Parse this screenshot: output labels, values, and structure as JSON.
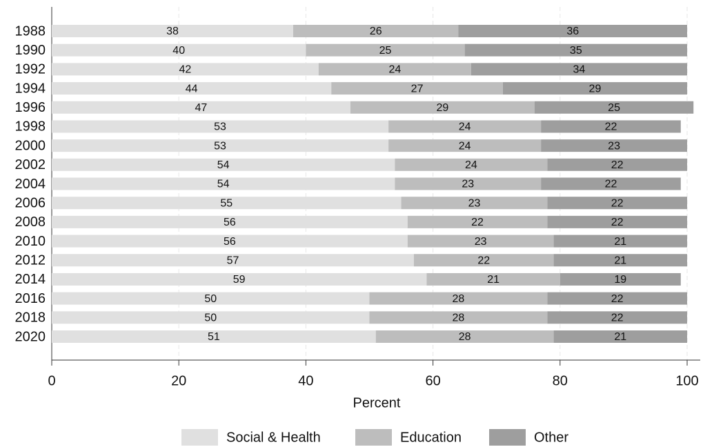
{
  "chart_data": {
    "type": "bar",
    "orientation": "horizontal",
    "stacked": true,
    "categories": [
      "1988",
      "1990",
      "1992",
      "1994",
      "1996",
      "1998",
      "2000",
      "2002",
      "2004",
      "2006",
      "2008",
      "2010",
      "2012",
      "2014",
      "2016",
      "2018",
      "2020"
    ],
    "series": [
      {
        "name": "Social & Health",
        "color": "#e0e0e0",
        "values": [
          38,
          40,
          42,
          44,
          47,
          53,
          53,
          54,
          54,
          55,
          56,
          56,
          57,
          59,
          50,
          50,
          51
        ]
      },
      {
        "name": "Education",
        "color": "#bdbdbd",
        "values": [
          26,
          25,
          24,
          27,
          29,
          24,
          24,
          24,
          23,
          23,
          22,
          23,
          22,
          21,
          28,
          28,
          28
        ]
      },
      {
        "name": "Other",
        "color": "#9e9e9e",
        "values": [
          36,
          35,
          34,
          29,
          25,
          22,
          23,
          22,
          22,
          22,
          22,
          21,
          21,
          19,
          22,
          22,
          21
        ]
      }
    ],
    "xlabel": "Percent",
    "xlim": [
      0,
      100
    ],
    "xticks": [
      0,
      20,
      40,
      60,
      80,
      100
    ],
    "grid": true,
    "legend": "bottom"
  }
}
